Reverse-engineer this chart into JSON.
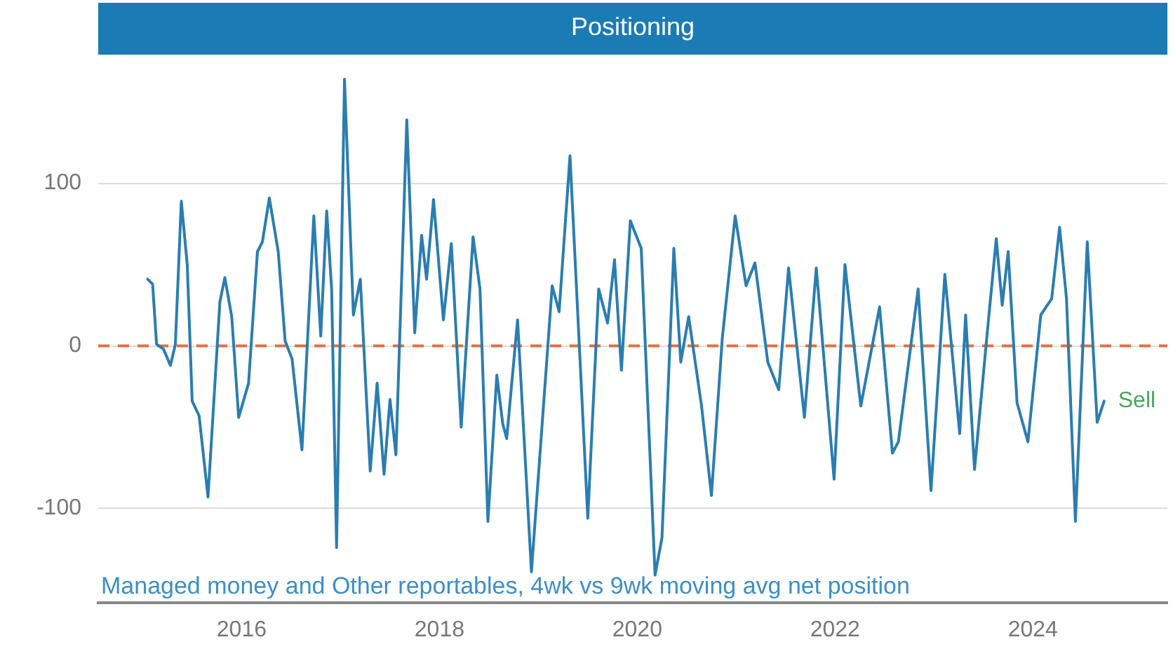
{
  "chart_data": {
    "type": "line",
    "title": "Positioning",
    "x": [
      2015.05,
      2015.1,
      2015.14,
      2015.21,
      2015.28,
      2015.33,
      2015.39,
      2015.45,
      2015.5,
      2015.57,
      2015.66,
      2015.78,
      2015.83,
      2015.9,
      2015.97,
      2016.07,
      2016.16,
      2016.21,
      2016.28,
      2016.37,
      2016.44,
      2016.51,
      2016.61,
      2016.73,
      2016.8,
      2016.86,
      2016.91,
      2016.96,
      2017.04,
      2017.13,
      2017.2,
      2017.3,
      2017.37,
      2017.44,
      2017.5,
      2017.56,
      2017.67,
      2017.75,
      2017.82,
      2017.87,
      2017.94,
      2018.04,
      2018.12,
      2018.22,
      2018.34,
      2018.41,
      2018.49,
      2018.58,
      2018.64,
      2018.68,
      2018.79,
      2018.93,
      2019.14,
      2019.21,
      2019.32,
      2019.5,
      2019.61,
      2019.7,
      2019.77,
      2019.84,
      2019.93,
      2020.04,
      2020.18,
      2020.25,
      2020.37,
      2020.44,
      2020.52,
      2020.65,
      2020.75,
      2020.86,
      2020.99,
      2021.1,
      2021.19,
      2021.32,
      2021.43,
      2021.53,
      2021.69,
      2021.81,
      2021.99,
      2022.1,
      2022.26,
      2022.45,
      2022.58,
      2022.64,
      2022.84,
      2022.97,
      2023.11,
      2023.26,
      2023.32,
      2023.41,
      2023.54,
      2023.63,
      2023.69,
      2023.75,
      2023.84,
      2023.95,
      2024.08,
      2024.19,
      2024.27,
      2024.34,
      2024.43,
      2024.55,
      2024.65,
      2024.72
    ],
    "series": [
      {
        "color": "#2a7db1",
        "values": [
          41,
          38,
          1,
          -2,
          -12,
          1,
          89,
          50,
          -34,
          -43,
          -93,
          27,
          42,
          18,
          -44,
          -23,
          58,
          64,
          91,
          58,
          3,
          -8,
          -64,
          80,
          6,
          83,
          35,
          -124,
          164,
          19,
          41,
          -77,
          -23,
          -79,
          -33,
          -67,
          139,
          8,
          68,
          41,
          90,
          16,
          63,
          -50,
          67,
          35,
          -108,
          -18,
          -48,
          -57,
          16,
          -139,
          37,
          21,
          117,
          -106,
          35,
          14,
          53,
          -15,
          77,
          60,
          -141,
          -118,
          60,
          -10,
          18,
          -37,
          -92,
          5,
          80,
          37,
          51,
          -10,
          -27,
          48,
          -44,
          48,
          -82,
          50,
          -37,
          24,
          -66,
          -59,
          35,
          -89,
          44,
          -54,
          19,
          -76,
          9,
          66,
          25,
          58,
          -35,
          -59,
          19,
          29,
          73,
          29,
          -108,
          64,
          -47,
          -34
        ]
      }
    ],
    "xlim": [
      2014.55,
      2025.36
    ],
    "xticks": [
      2016,
      2018,
      2020,
      2022,
      2024
    ],
    "ylim": [
      -158,
      180
    ],
    "yticks": [
      -100,
      0,
      100
    ],
    "grid": "y",
    "legend": false,
    "marker": "none",
    "line_style": "solid",
    "ref_lines": [
      {
        "axis": "y",
        "value": 0,
        "color": "#e07040",
        "line_style": "dashed"
      }
    ],
    "annotations": [
      {
        "text": "Sell",
        "x": 2024.72,
        "y": -34
      },
      "Managed money and Other reportables, 4wk vs 9wk moving avg net position"
    ]
  }
}
